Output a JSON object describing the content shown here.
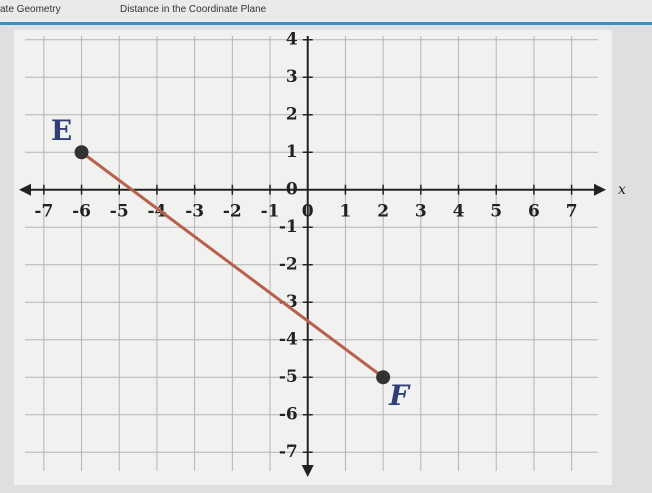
{
  "header": {
    "course": "ate Geometry",
    "lesson": "Distance in the Coordinate Plane"
  },
  "chart_data": {
    "type": "line",
    "x_label": "x",
    "x": [
      -6,
      2
    ],
    "series": [
      {
        "name": "EF",
        "color": "#b8604c",
        "values": [
          1,
          -5
        ],
        "point_labels": [
          "E",
          "F"
        ],
        "point_color": "#333333"
      }
    ],
    "xlim": [
      -7.5,
      7.7
    ],
    "ylim": [
      -7.5,
      4.1
    ],
    "xticks": [
      -7,
      -6,
      -5,
      -4,
      -3,
      -2,
      -1,
      0,
      1,
      2,
      3,
      4,
      5,
      6,
      7
    ],
    "yticks": [
      -7,
      -6,
      -5,
      -4,
      -3,
      -2,
      -1,
      0,
      1,
      2,
      3,
      4
    ],
    "grid": true
  }
}
